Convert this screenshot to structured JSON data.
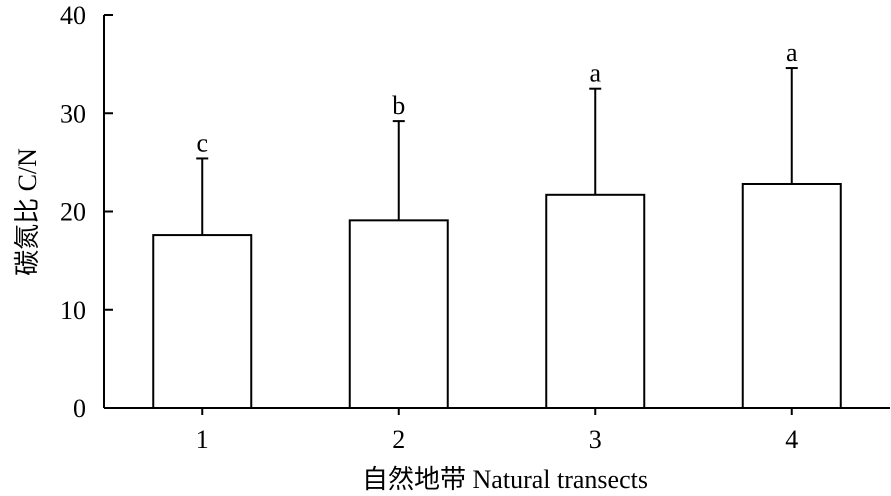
{
  "chart_data": {
    "type": "bar",
    "categories": [
      "1",
      "2",
      "3",
      "4"
    ],
    "values": [
      17.6,
      19.1,
      21.7,
      22.8
    ],
    "error_upper": [
      25.4,
      29.2,
      32.5,
      34.6
    ],
    "significance": [
      "c",
      "b",
      "a",
      "a"
    ],
    "xlabel": "自然地带 Natural transects",
    "ylabel": "碳氮比 C/N",
    "ylim": [
      0,
      40
    ],
    "yticks": [
      0,
      10,
      20,
      30,
      40
    ],
    "grid": false,
    "colors": {
      "bar_fill": "#ffffff",
      "stroke": "#000000"
    }
  }
}
